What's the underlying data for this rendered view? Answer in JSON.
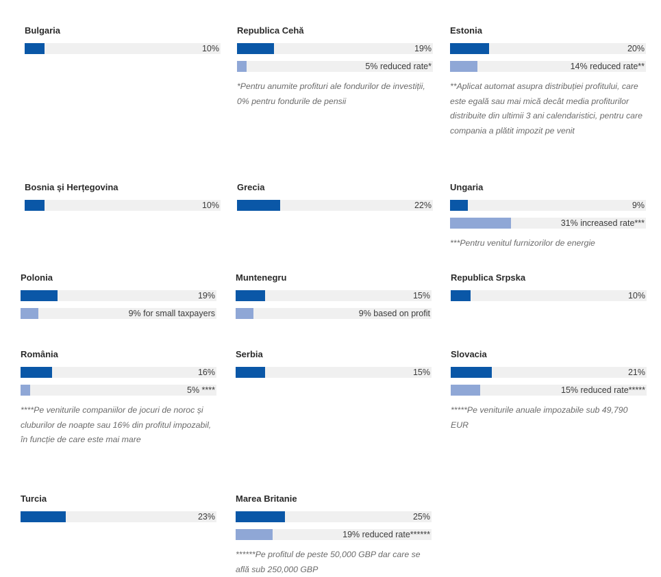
{
  "colors": {
    "primary": "#0a57a7",
    "secondary": "#8fa7d6",
    "track": "#f0f0f0"
  },
  "chart_data": {
    "type": "bar",
    "xlim": [
      0,
      100
    ],
    "countries": [
      {
        "name": "Bulgaria",
        "bars": [
          {
            "value": 10,
            "label": "10%",
            "kind": "primary"
          }
        ],
        "note": ""
      },
      {
        "name": "Republica Cehă",
        "bars": [
          {
            "value": 19,
            "label": "19%",
            "kind": "primary"
          },
          {
            "value": 5,
            "label": "5% reduced rate*",
            "kind": "secondary"
          }
        ],
        "note": "*Pentru anumite profituri ale fondurilor de investiții, 0% pentru fondurile de pensii"
      },
      {
        "name": "Estonia",
        "bars": [
          {
            "value": 20,
            "label": "20%",
            "kind": "primary"
          },
          {
            "value": 14,
            "label": "14% reduced rate**",
            "kind": "secondary"
          }
        ],
        "note": "**Aplicat automat asupra distribuției profitului, care este egală sau mai mică decât media profiturilor distribuite din ultimii 3 ani calendaristici, pentru care compania a plătit impozit pe venit"
      },
      {
        "name": "Bosnia și Herțegovina",
        "bars": [
          {
            "value": 10,
            "label": "10%",
            "kind": "primary"
          }
        ],
        "note": ""
      },
      {
        "name": "Grecia",
        "bars": [
          {
            "value": 22,
            "label": "22%",
            "kind": "primary"
          }
        ],
        "note": ""
      },
      {
        "name": "Ungaria",
        "bars": [
          {
            "value": 9,
            "label": "9%",
            "kind": "primary"
          },
          {
            "value": 31,
            "label": "31% increased rate***",
            "kind": "secondary"
          }
        ],
        "note": "***Pentru venitul furnizorilor de energie"
      },
      {
        "name": "Polonia",
        "bars": [
          {
            "value": 19,
            "label": "19%",
            "kind": "primary"
          },
          {
            "value": 9,
            "label": "9% for small taxpayers",
            "kind": "secondary"
          }
        ],
        "note": ""
      },
      {
        "name": "Muntenegru",
        "bars": [
          {
            "value": 15,
            "label": "15%",
            "kind": "primary"
          },
          {
            "value": 9,
            "label": "9% based on profit",
            "kind": "secondary"
          }
        ],
        "note": ""
      },
      {
        "name": "Republica Srpska",
        "bars": [
          {
            "value": 10,
            "label": "10%",
            "kind": "primary"
          }
        ],
        "note": ""
      },
      {
        "name": "România",
        "bars": [
          {
            "value": 16,
            "label": "16%",
            "kind": "primary"
          },
          {
            "value": 5,
            "label": "5% ****",
            "kind": "secondary"
          }
        ],
        "note": "****Pe veniturile companiilor de jocuri de noroc și cluburilor de noapte sau 16% din profitul impozabil, în funcție de care este mai mare"
      },
      {
        "name": "Serbia",
        "bars": [
          {
            "value": 15,
            "label": "15%",
            "kind": "primary"
          }
        ],
        "note": ""
      },
      {
        "name": "Slovacia",
        "bars": [
          {
            "value": 21,
            "label": "21%",
            "kind": "primary"
          },
          {
            "value": 15,
            "label": "15% reduced rate*****",
            "kind": "secondary"
          }
        ],
        "note": "*****Pe veniturile anuale impozabile sub 49,790 EUR"
      },
      {
        "name": "Turcia",
        "bars": [
          {
            "value": 23,
            "label": "23%",
            "kind": "primary"
          }
        ],
        "note": ""
      },
      {
        "name": "Marea Britanie",
        "bars": [
          {
            "value": 25,
            "label": "25%",
            "kind": "primary"
          },
          {
            "value": 19,
            "label": "19% reduced rate******",
            "kind": "secondary"
          }
        ],
        "note": "******Pe profitul de peste  50,000 GBP dar care se află sub 250,000 GBP"
      }
    ]
  }
}
